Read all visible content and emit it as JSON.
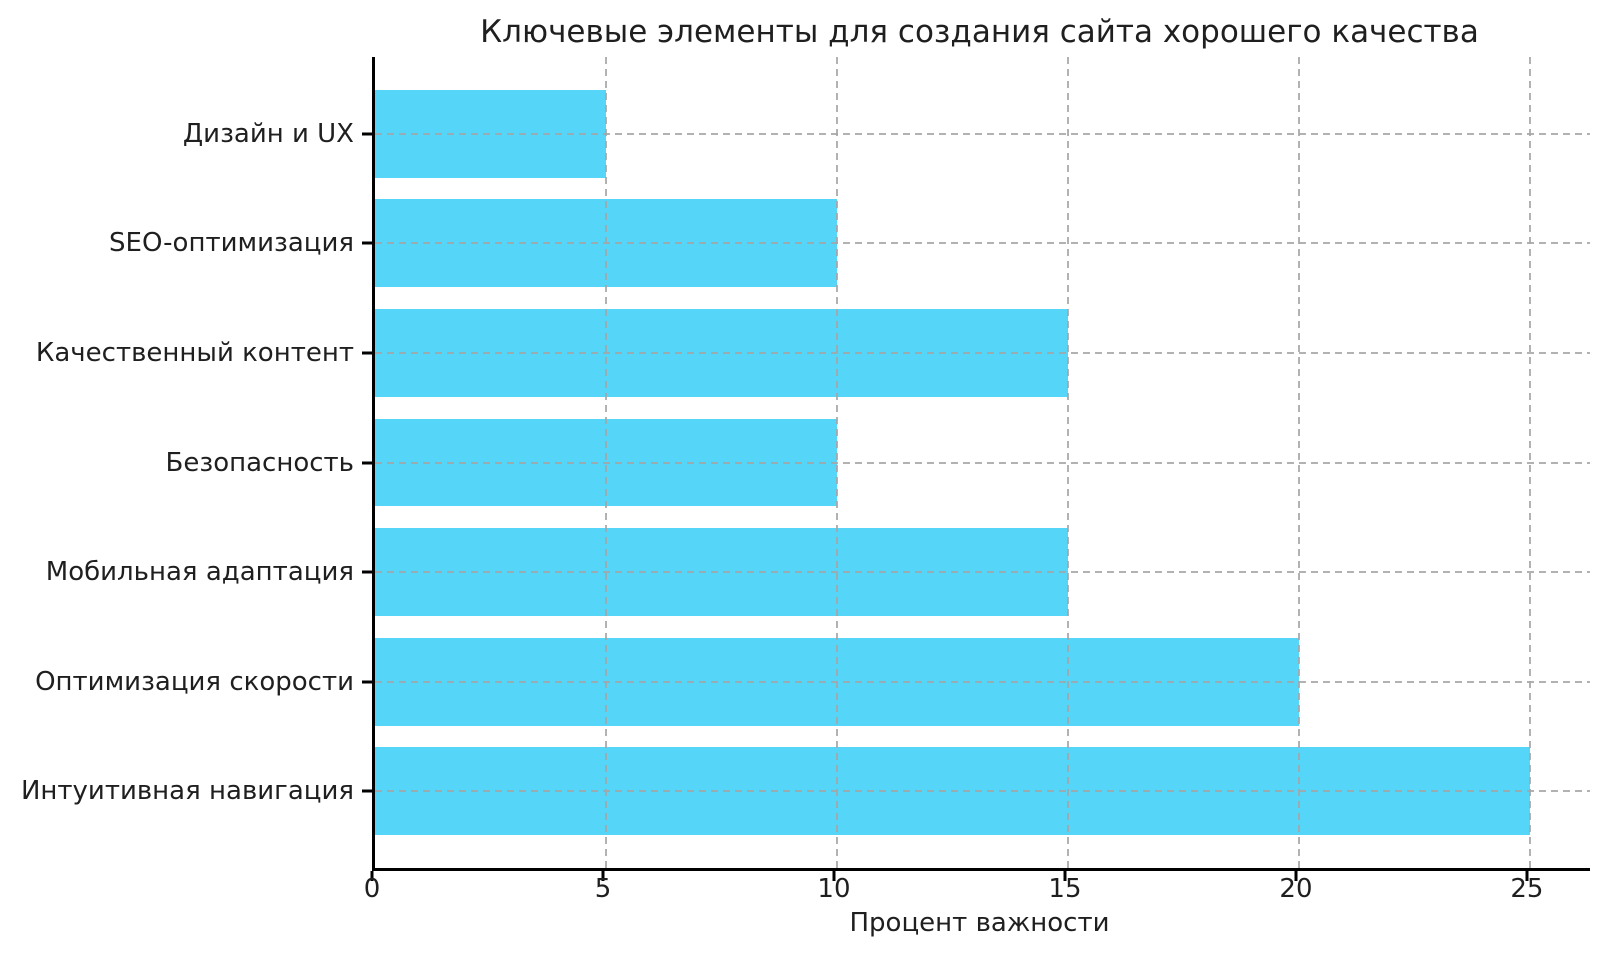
{
  "chart_data": {
    "type": "bar",
    "orientation": "horizontal",
    "title": "Ключевые элементы для создания сайта хорошего качества",
    "xlabel": "Процент важности",
    "ylabel": "",
    "categories": [
      "Дизайн и UX",
      "SEO-оптимизация",
      "Качественный контент",
      "Безопасность",
      "Мобильная адаптация",
      "Оптимизация скорости",
      "Интуитивная навигация"
    ],
    "values": [
      5,
      10,
      15,
      10,
      15,
      20,
      25
    ],
    "xticks": [
      0,
      5,
      10,
      15,
      20,
      25
    ],
    "xlim": [
      0,
      26.3
    ],
    "grid": true,
    "grid_style": "dashed",
    "legend": "none",
    "bar_color": "#55d5f8",
    "grid_color": "#a5a5a5",
    "axis_color": "#000000",
    "text_color": "#1f1f1f"
  }
}
